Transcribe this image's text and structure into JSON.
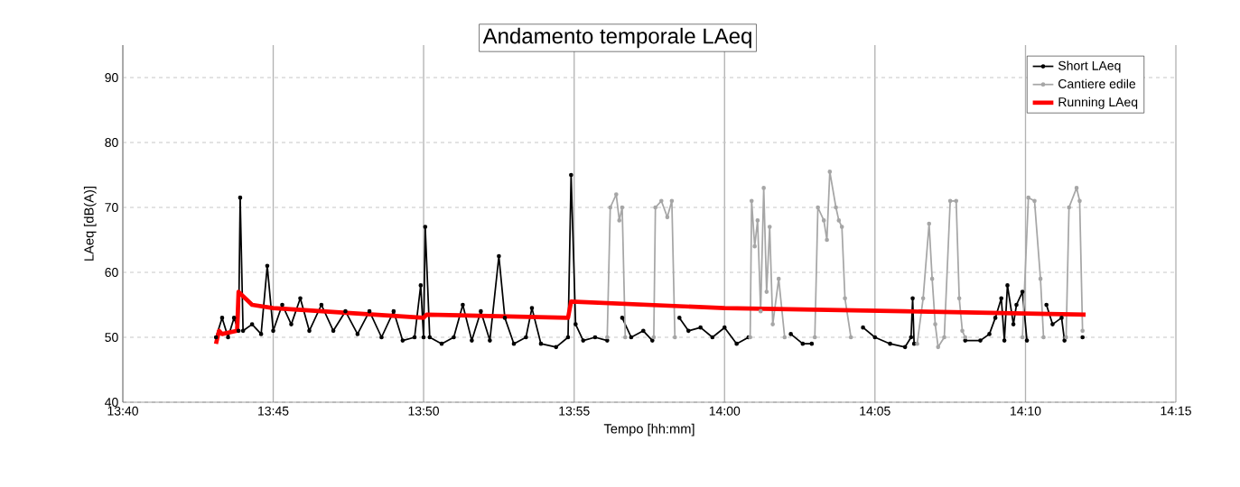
{
  "chart_data": {
    "type": "line",
    "title": "Andamento temporale LAeq",
    "xlabel": "Tempo [hh:mm]",
    "ylabel": "LAeq   [dB(A)]",
    "xlim": [
      13.6667,
      14.25
    ],
    "ylim": [
      40,
      95
    ],
    "xticks": [
      {
        "value": 13.6667,
        "label": "13:40"
      },
      {
        "value": 13.75,
        "label": "13:45"
      },
      {
        "value": 13.8333,
        "label": "13:50"
      },
      {
        "value": 13.9167,
        "label": "13:55"
      },
      {
        "value": 14.0,
        "label": "14:00"
      },
      {
        "value": 14.0833,
        "label": "14:05"
      },
      {
        "value": 14.1667,
        "label": "14:10"
      },
      {
        "value": 14.25,
        "label": "14:15"
      }
    ],
    "yticks": [
      40,
      50,
      60,
      70,
      80,
      90
    ],
    "grid": true,
    "legend": "top right",
    "marker": "circle",
    "line_style": "solid",
    "series": [
      {
        "name": "Short LAeq",
        "color": "#000000",
        "x": [
          13.7183,
          13.7217,
          13.725,
          13.7283,
          13.7308,
          13.7317,
          13.7333,
          13.7383,
          13.7433,
          13.7467,
          13.75,
          13.755,
          13.76,
          13.765,
          13.77,
          13.7767,
          13.7833,
          13.79,
          13.7967,
          13.8033,
          13.81,
          13.8167,
          13.8217,
          13.8283,
          13.8317,
          13.8333,
          13.8342,
          13.8367,
          13.8433,
          13.85,
          13.855,
          13.86,
          13.865,
          13.87,
          13.875,
          13.8783,
          13.8833,
          13.89,
          13.8933,
          13.8983,
          13.9067,
          13.9133,
          13.915,
          13.9175,
          13.9217,
          13.9283,
          13.935,
          13.9383,
          13.9433,
          13.9483,
          13.955,
          13.96,
          13.9667,
          13.975,
          13.98,
          13.9867,
          13.9933,
          14.0,
          14.0067,
          14.0133,
          14.025,
          14.0367,
          14.0433,
          14.0483,
          14.0583,
          14.0767,
          14.0833,
          14.0917,
          14.1,
          14.1033,
          14.1042,
          14.105,
          14.1167,
          14.1333,
          14.1417,
          14.1467,
          14.15,
          14.1533,
          14.155,
          14.1567,
          14.16,
          14.1617,
          14.165,
          14.1675,
          14.1717,
          14.1783,
          14.1817,
          14.1867,
          14.1883,
          14.1933,
          14.1983
        ],
        "values": [
          50,
          53,
          50,
          53,
          51,
          71.5,
          51,
          52,
          50.5,
          61,
          51,
          55,
          52,
          56,
          51,
          55,
          51,
          54,
          50.5,
          54,
          50,
          54,
          49.5,
          50,
          58,
          50,
          67,
          50,
          49,
          50,
          55,
          49.5,
          54,
          49.5,
          62.5,
          53,
          49,
          50,
          54.5,
          49,
          48.5,
          50,
          75,
          52,
          49.5,
          50,
          49.5,
          null,
          53,
          50,
          51,
          49.5,
          null,
          53,
          51,
          51.5,
          50,
          51.5,
          49,
          50,
          null,
          50.5,
          49,
          49,
          null,
          51.5,
          50,
          49,
          48.5,
          50,
          56,
          49,
          null,
          49.5,
          49.5,
          50.5,
          53,
          56,
          49.5,
          58,
          52,
          55,
          57,
          49.5,
          null,
          55,
          52,
          53,
          49.5,
          null,
          50
        ]
      },
      {
        "name": "Cantiere edile",
        "color": "#a6a6a6",
        "x": [
          13.935,
          13.9367,
          13.94,
          13.9417,
          13.9433,
          13.945,
          13.9533,
          13.9608,
          13.9617,
          13.965,
          13.9683,
          13.9708,
          13.9725,
          13.9917,
          14.0142,
          14.015,
          14.0167,
          14.0183,
          14.02,
          14.0217,
          14.0233,
          14.025,
          14.0267,
          14.03,
          14.0333,
          14.0417,
          14.05,
          14.0517,
          14.055,
          14.0567,
          14.0583,
          14.0617,
          14.0633,
          14.065,
          14.0667,
          14.07,
          14.0833,
          14.1067,
          14.11,
          14.1133,
          14.115,
          14.1167,
          14.1183,
          14.1217,
          14.125,
          14.1283,
          14.13,
          14.1317,
          14.1333,
          14.15,
          14.165,
          14.1683,
          14.1717,
          14.175,
          14.1767,
          14.1833,
          14.1892,
          14.1908,
          14.195,
          14.1967,
          14.1983
        ],
        "values": [
          50,
          70,
          72,
          68,
          70,
          50,
          null,
          50,
          70,
          71,
          68.5,
          71,
          50,
          null,
          50,
          71,
          64,
          68,
          54,
          73,
          57,
          67,
          52,
          59,
          50,
          null,
          50,
          70,
          68,
          65,
          75.5,
          70,
          68,
          67,
          56,
          50,
          null,
          49,
          56,
          67.5,
          59,
          52,
          48.5,
          50,
          71,
          71,
          56,
          51,
          50,
          null,
          50,
          71.5,
          71,
          59,
          50,
          null,
          50,
          70,
          73,
          71,
          51
        ]
      },
      {
        "name": "Running LAeq",
        "color": "#ff0000",
        "marker": "none",
        "x": [
          13.7183,
          13.72,
          13.7217,
          13.73,
          13.7308,
          13.7383,
          13.75,
          13.8333,
          13.835,
          13.9133,
          13.915,
          14.0,
          14.1,
          14.2
        ],
        "values": [
          49,
          51,
          50.5,
          51,
          57,
          55,
          54.5,
          53,
          53.5,
          53,
          55.5,
          54.5,
          54,
          53.5
        ]
      }
    ]
  }
}
